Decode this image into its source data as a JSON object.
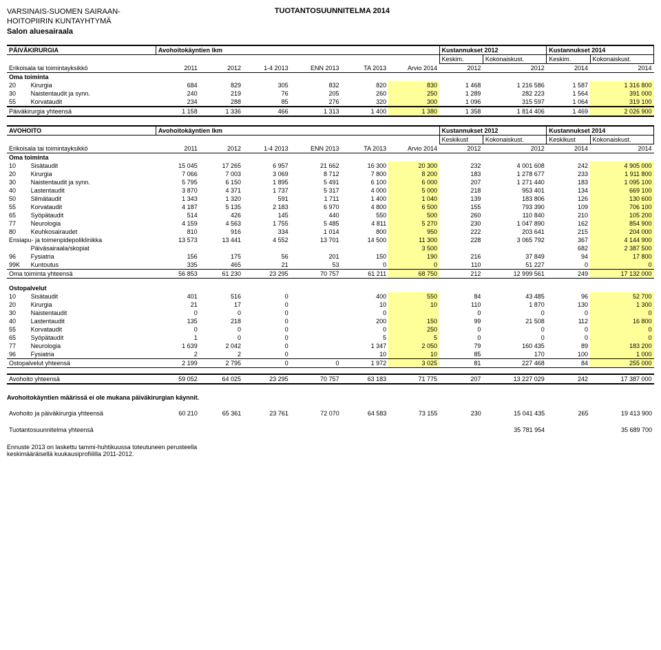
{
  "org": {
    "line1": "VARSINAIS-SUOMEN SAIRAAN-",
    "line2": "HOITOPIIRIN KUNTAYHTYMÄ",
    "line3": "Salon aluesairaala"
  },
  "title": "TUOTANTOSUUNNITELMA 2014",
  "colors": {
    "highlight": "#ffff99",
    "text": "#000000",
    "bg": "#ffffff"
  },
  "paiva": {
    "header_main": "PÄIVÄKIRURGIA",
    "header_mid": "Avohoitokäyntien lkm",
    "kust2012": "Kustannukset 2012",
    "kust2014": "Kustannukset 2014",
    "keskim": "Keskim.",
    "kokonais": "Kokonaiskust.",
    "row_axis": "Erikoisala tai toimintayksikkö",
    "cols": [
      "2011",
      "2012",
      "1-4 2013",
      "ENN 2013",
      "TA 2013",
      "Arvio 2014",
      "2012",
      "2012",
      "2014",
      "2014"
    ],
    "oma": "Oma toiminta",
    "rows": [
      {
        "code": "20",
        "name": "Kirurgia",
        "v": [
          "684",
          "829",
          "305",
          "832",
          "820",
          "830",
          "1 468",
          "1 216 586",
          "1 587",
          "1 316 800"
        ]
      },
      {
        "code": "30",
        "name": "Naistentaudit ja synn.",
        "v": [
          "240",
          "219",
          "76",
          "205",
          "260",
          "250",
          "1 289",
          "282 223",
          "1 564",
          "391 000"
        ]
      },
      {
        "code": "55",
        "name": "Korvataudit",
        "v": [
          "234",
          "288",
          "85",
          "276",
          "320",
          "300",
          "1 096",
          "315 597",
          "1 064",
          "319 100"
        ]
      }
    ],
    "total_label": "Päiväkirurgia yhteensä",
    "total": [
      "1 158",
      "1 336",
      "466",
      "1 313",
      "1 400",
      "1 380",
      "1 358",
      "1 814 406",
      "1 469",
      "2 026 900"
    ]
  },
  "avo": {
    "header_main": "AVOHOITO",
    "header_mid": "Avohoitokäyntien lkm",
    "kust2012": "Kustannukset 2012",
    "kust2014": "Kustannukset 2014",
    "keskikust": "Keskikust",
    "kokonais": "Kokonaiskust.",
    "row_axis": "Erikoisala tai toimintayksikkö",
    "cols": [
      "2011",
      "2012",
      "1-4 2013",
      "ENN 2013",
      "TA 2013",
      "Arvio 2014",
      "2012",
      "2012",
      "2014",
      "2014"
    ],
    "oma": "Oma toiminta",
    "rows": [
      {
        "code": "10",
        "name": "Sisätaudit",
        "v": [
          "15 045",
          "17 265",
          "6 957",
          "21 662",
          "16 300",
          "20 300",
          "232",
          "4 001 608",
          "242",
          "4 905 000"
        ]
      },
      {
        "code": "20",
        "name": "Kirurgia",
        "v": [
          "7 066",
          "7 003",
          "3 069",
          "8 712",
          "7 800",
          "8 200",
          "183",
          "1 278 677",
          "233",
          "1 911 800"
        ]
      },
      {
        "code": "30",
        "name": "Naistentaudit ja synn.",
        "v": [
          "5 795",
          "6 150",
          "1 895",
          "5 491",
          "6 100",
          "6 000",
          "207",
          "1 271 440",
          "183",
          "1 095 100"
        ]
      },
      {
        "code": "40",
        "name": "Lastentaudit",
        "v": [
          "3 870",
          "4 371",
          "1 737",
          "5 317",
          "4 000",
          "5 000",
          "218",
          "953 401",
          "134",
          "669 100"
        ]
      },
      {
        "code": "50",
        "name": "Silmätaudit",
        "v": [
          "1 343",
          "1 320",
          "591",
          "1 711",
          "1 400",
          "1 040",
          "139",
          "183 806",
          "126",
          "130 600"
        ]
      },
      {
        "code": "55",
        "name": "Korvataudit",
        "v": [
          "4 187",
          "5 135",
          "2 183",
          "6 970",
          "4 800",
          "6 500",
          "155",
          "793 390",
          "109",
          "706 100"
        ]
      },
      {
        "code": "65",
        "name": "Syöpätaudit",
        "v": [
          "514",
          "426",
          "145",
          "440",
          "550",
          "500",
          "260",
          "110 840",
          "210",
          "105 200"
        ]
      },
      {
        "code": "77",
        "name": "Neurologia",
        "v": [
          "4 159",
          "4 563",
          "1 755",
          "5 485",
          "4 811",
          "5 270",
          "230",
          "1 047 890",
          "162",
          "854 900"
        ]
      },
      {
        "code": "80",
        "name": "Keuhkosairaudet",
        "v": [
          "810",
          "916",
          "334",
          "1 014",
          "800",
          "950",
          "222",
          "203 641",
          "215",
          "204 000"
        ]
      }
    ],
    "ensiapu_label": "Ensiapu- ja toimenpidepoliklinikka",
    "ensiapu": [
      "13 573",
      "13 441",
      "4 552",
      "13 701",
      "14 500",
      "11 300",
      "228",
      "3 065 792",
      "367",
      "4 144 900"
    ],
    "paivasair_label": "Päiväsairaala/skopiat",
    "paivasair": [
      "",
      "",
      "",
      "",
      "",
      "3 500",
      "",
      "",
      "682",
      "2 387 500"
    ],
    "row96": {
      "code": "96",
      "name": "Fysiatria",
      "v": [
        "156",
        "175",
        "56",
        "201",
        "150",
        "190",
        "216",
        "37 849",
        "94",
        "17 800"
      ]
    },
    "row99k": {
      "code": "99K",
      "name": "Kuntoutus",
      "v": [
        "335",
        "465",
        "21",
        "53",
        "0",
        "0",
        "110",
        "51 227",
        "0",
        "0"
      ]
    },
    "oma_total_label": "Oma toiminta yhteensä",
    "oma_total": [
      "56 853",
      "61 230",
      "23 295",
      "70 757",
      "61 211",
      "68 750",
      "212",
      "12 999 561",
      "249",
      "17 132 000"
    ],
    "osto_label": "Ostopalvelut",
    "osto_rows": [
      {
        "code": "10",
        "name": "Sisätaudit",
        "v": [
          "401",
          "516",
          "0",
          "",
          "400",
          "550",
          "84",
          "43 485",
          "96",
          "52 700"
        ]
      },
      {
        "code": "20",
        "name": "Kirurgia",
        "v": [
          "21",
          "17",
          "0",
          "",
          "10",
          "10",
          "110",
          "1 870",
          "130",
          "1 300"
        ]
      },
      {
        "code": "30",
        "name": "Naistentaudit",
        "v": [
          "0",
          "0",
          "0",
          "",
          "0",
          "",
          "0",
          "0",
          "0",
          "0"
        ]
      },
      {
        "code": "40",
        "name": "Lastentaudit",
        "v": [
          "135",
          "218",
          "0",
          "",
          "200",
          "150",
          "99",
          "21 508",
          "112",
          "16 800"
        ]
      },
      {
        "code": "55",
        "name": "Korvataudit",
        "v": [
          "0",
          "0",
          "0",
          "",
          "0",
          "250",
          "0",
          "0",
          "0",
          "0"
        ]
      },
      {
        "code": "65",
        "name": "Syöpätaudit",
        "v": [
          "1",
          "0",
          "0",
          "",
          "5",
          "5",
          "0",
          "0",
          "0",
          "0"
        ]
      },
      {
        "code": "77",
        "name": "Neurologia",
        "v": [
          "1 639",
          "2 042",
          "0",
          "",
          "1 347",
          "2 050",
          "79",
          "160 435",
          "89",
          "183 200"
        ]
      },
      {
        "code": "96",
        "name": "Fysiatria",
        "v": [
          "2",
          "2",
          "0",
          "",
          "10",
          "10",
          "85",
          "170",
          "100",
          "1 000"
        ]
      }
    ],
    "osto_total_label": "Ostopalvelut yhteensä",
    "osto_total": [
      "2 199",
      "2 795",
      "0",
      "0",
      "1 972",
      "3 025",
      "81",
      "227 468",
      "84",
      "255 000"
    ],
    "avo_total_label": "Avohoito yhteensä",
    "avo_total": [
      "59 052",
      "64 025",
      "23 295",
      "70 757",
      "63 183",
      "71 775",
      "207",
      "13 227 029",
      "242",
      "17 387 000"
    ]
  },
  "footnote1": "Avohoitokäyntien määrissä ei ole mukana päiväkirurgian käynnit.",
  "combo_label": "Avohoito ja päiväkirurgia yhteensä",
  "combo": [
    "60 210",
    "65 361",
    "23 761",
    "72 070",
    "64 583",
    "73 155",
    "230",
    "15 041 435",
    "265",
    "19 413 900"
  ],
  "tuot_label": "Tuotantosuunnitelma yhteensä",
  "tuot": [
    "35 781 954",
    "35 689 700"
  ],
  "bottom1": "Ennuste 2013 on laskettu tammi-huhtikuussa toteutuneen perusteella",
  "bottom2": "keskimääräisellä kuukausiprofiililla 2011-2012."
}
